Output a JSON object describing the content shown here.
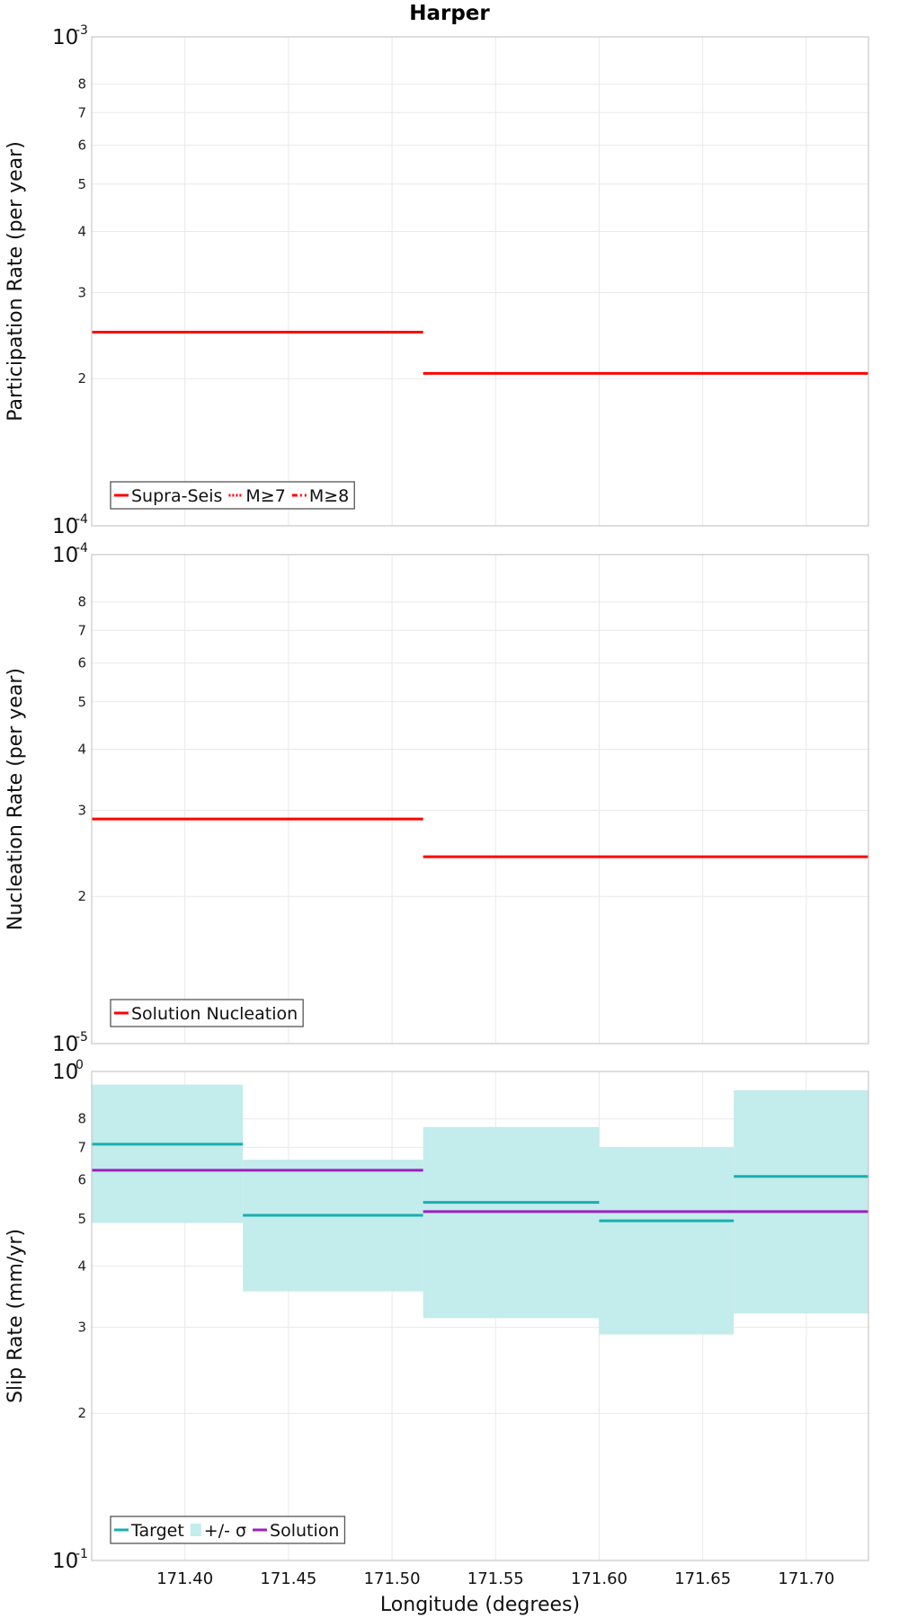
{
  "chart_data": [
    {
      "type": "line",
      "title": "Harper",
      "ylabel": "Participation Rate (per year)",
      "xlabel": "",
      "xlim": [
        171.355,
        171.73
      ],
      "y_scale": "log",
      "ylim": [
        0.0001,
        0.001
      ],
      "y_decade_labels": [
        {
          "value": 0.0001,
          "base": "10",
          "exp": "-4"
        },
        {
          "value": 0.001,
          "base": "10",
          "exp": "-3"
        }
      ],
      "y_minor_ticks": [
        {
          "value": 0.0002,
          "label": "2"
        },
        {
          "value": 0.0003,
          "label": "3"
        },
        {
          "value": 0.0004,
          "label": "4"
        },
        {
          "value": 0.0005,
          "label": "5"
        },
        {
          "value": 0.0006,
          "label": "6"
        },
        {
          "value": 0.0007,
          "label": "7"
        },
        {
          "value": 0.0008,
          "label": "8"
        }
      ],
      "series": [
        {
          "name": "Supra-Seis",
          "color": "#ff0000",
          "style": "solid",
          "segments": [
            {
              "x": [
                171.355,
                171.515
              ],
              "y": 0.000249
            },
            {
              "x": [
                171.515,
                171.73
              ],
              "y": 0.000205
            }
          ]
        },
        {
          "name": "M≥7",
          "color": "#ff0000",
          "style": "dotted",
          "segments": []
        },
        {
          "name": "M≥8",
          "color": "#ff0000",
          "style": "dashdot",
          "segments": []
        }
      ],
      "legend": {
        "placement": "bottom-left",
        "entries": [
          "Supra-Seis",
          "M≥7",
          "M≥8"
        ]
      }
    },
    {
      "type": "line",
      "ylabel": "Nucleation Rate (per year)",
      "xlabel": "",
      "xlim": [
        171.355,
        171.73
      ],
      "y_scale": "log",
      "ylim": [
        1e-05,
        0.0001
      ],
      "y_decade_labels": [
        {
          "value": 1e-05,
          "base": "10",
          "exp": "-5"
        },
        {
          "value": 0.0001,
          "base": "10",
          "exp": "-4"
        }
      ],
      "y_minor_ticks": [
        {
          "value": 2e-05,
          "label": "2"
        },
        {
          "value": 3e-05,
          "label": "3"
        },
        {
          "value": 4e-05,
          "label": "4"
        },
        {
          "value": 5e-05,
          "label": "5"
        },
        {
          "value": 6e-05,
          "label": "6"
        },
        {
          "value": 7e-05,
          "label": "7"
        },
        {
          "value": 8e-05,
          "label": "8"
        }
      ],
      "series": [
        {
          "name": "Solution Nucleation",
          "color": "#ff0000",
          "style": "solid",
          "segments": [
            {
              "x": [
                171.355,
                171.515
              ],
              "y": 2.88e-05
            },
            {
              "x": [
                171.515,
                171.73
              ],
              "y": 2.41e-05
            }
          ]
        }
      ],
      "legend": {
        "placement": "bottom-left",
        "entries": [
          "Solution Nucleation"
        ]
      }
    },
    {
      "type": "line",
      "ylabel": "Slip Rate (mm/yr)",
      "xlabel": "Longitude (degrees)",
      "xlim": [
        171.355,
        171.73
      ],
      "x_ticks": [
        "171.40",
        "171.45",
        "171.50",
        "171.55",
        "171.60",
        "171.65",
        "171.70"
      ],
      "y_scale": "log",
      "ylim": [
        0.1,
        1
      ],
      "y_decade_labels": [
        {
          "value": 0.1,
          "base": "10",
          "exp": "-1"
        },
        {
          "value": 1,
          "base": "10",
          "exp": "0"
        }
      ],
      "y_minor_ticks": [
        {
          "value": 0.2,
          "label": "2"
        },
        {
          "value": 0.3,
          "label": "3"
        },
        {
          "value": 0.4,
          "label": "4"
        },
        {
          "value": 0.5,
          "label": "5"
        },
        {
          "value": 0.6,
          "label": "6"
        },
        {
          "value": 0.7,
          "label": "7"
        },
        {
          "value": 0.8,
          "label": "8"
        }
      ],
      "bands": {
        "name": "+/- σ",
        "color": "#c3ecec",
        "segments": [
          {
            "x": [
              171.355,
              171.428
            ],
            "low": 0.49,
            "high": 0.94
          },
          {
            "x": [
              171.428,
              171.515
            ],
            "low": 0.355,
            "high": 0.66
          },
          {
            "x": [
              171.515,
              171.6
            ],
            "low": 0.313,
            "high": 0.77
          },
          {
            "x": [
              171.6,
              171.665
            ],
            "low": 0.29,
            "high": 0.7
          },
          {
            "x": [
              171.665,
              171.73
            ],
            "low": 0.32,
            "high": 0.915
          }
        ]
      },
      "series": [
        {
          "name": "Target",
          "color": "#1aaeae",
          "style": "solid",
          "segments": [
            {
              "x": [
                171.355,
                171.428
              ],
              "y": 0.71
            },
            {
              "x": [
                171.428,
                171.515
              ],
              "y": 0.508
            },
            {
              "x": [
                171.515,
                171.6
              ],
              "y": 0.54
            },
            {
              "x": [
                171.6,
                171.665
              ],
              "y": 0.495
            },
            {
              "x": [
                171.665,
                171.73
              ],
              "y": 0.61
            }
          ]
        },
        {
          "name": "Solution",
          "color": "#9b20c0",
          "style": "solid",
          "segments": [
            {
              "x": [
                171.355,
                171.515
              ],
              "y": 0.628
            },
            {
              "x": [
                171.515,
                171.73
              ],
              "y": 0.517
            }
          ]
        }
      ],
      "legend": {
        "placement": "bottom-left",
        "entries": [
          "Target",
          "+/- σ",
          "Solution"
        ]
      }
    }
  ]
}
